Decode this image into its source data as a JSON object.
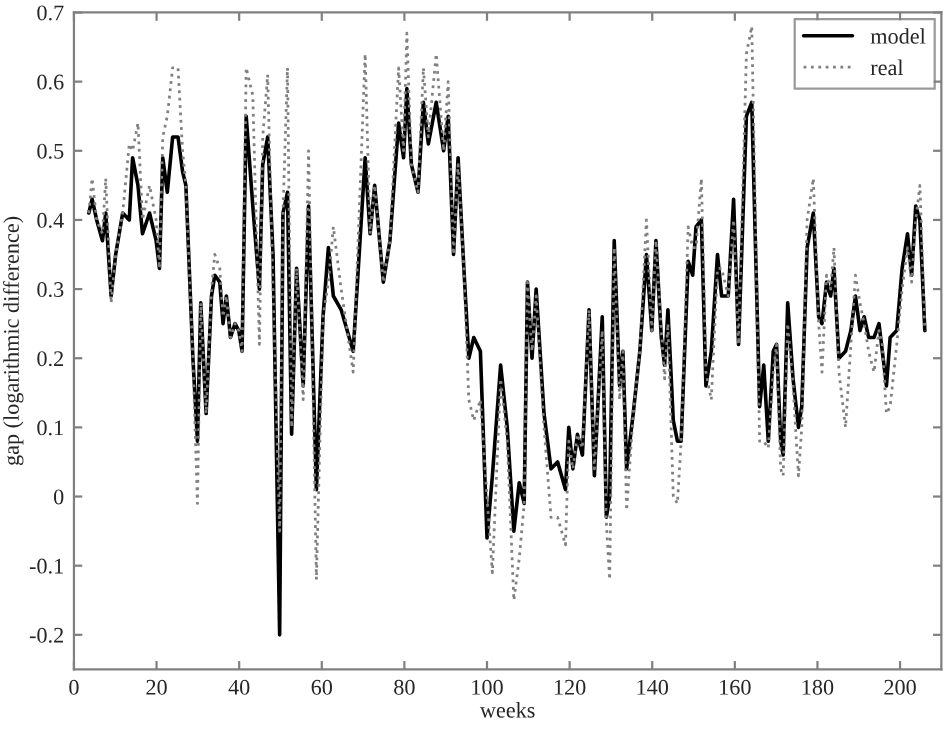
{
  "chart_data": {
    "type": "line",
    "xlabel": "weeks",
    "ylabel": "gap (logarithmic difference)",
    "x": [
      3.6,
      4.4,
      5.5,
      6.9,
      7.7,
      9.0,
      10.1,
      11.8,
      13.4,
      14.2,
      15.5,
      16.6,
      18.3,
      19.9,
      20.7,
      21.5,
      22.6,
      23.9,
      25.2,
      26.3,
      27.1,
      28.8,
      29.9,
      30.7,
      32.0,
      33.3,
      34.1,
      35.3,
      36.1,
      36.9,
      37.9,
      39.0,
      39.9,
      40.7,
      41.7,
      43.3,
      44.9,
      45.7,
      46.9,
      48.2,
      49.8,
      50.6,
      51.7,
      52.7,
      53.9,
      55.5,
      56.8,
      58.7,
      60.3,
      61.6,
      62.8,
      64.7,
      67.6,
      70.5,
      71.7,
      72.8,
      74.9,
      76.5,
      78.6,
      79.8,
      80.6,
      81.7,
      83.3,
      84.6,
      85.8,
      87.7,
      89.5,
      90.6,
      91.9,
      93.0,
      94.4,
      95.6,
      96.8,
      98.4,
      100.0,
      101.3,
      103.3,
      104.9,
      106.5,
      107.8,
      109.0,
      109.8,
      110.9,
      111.9,
      113.8,
      115.5,
      117.1,
      119.0,
      119.8,
      120.8,
      121.9,
      123.1,
      124.7,
      126.0,
      127.9,
      128.9,
      129.7,
      130.8,
      132.1,
      132.9,
      133.8,
      135.4,
      137.0,
      138.6,
      139.9,
      140.9,
      142.2,
      143.0,
      143.8,
      145.1,
      146.1,
      147.0,
      148.7,
      149.8,
      150.6,
      151.9,
      153.0,
      154.3,
      155.8,
      156.8,
      158.4,
      159.7,
      160.9,
      162.8,
      164.1,
      166.0,
      167.0,
      168.1,
      169.3,
      170.1,
      171.1,
      171.7,
      172.8,
      174.1,
      175.4,
      176.2,
      177.5,
      179.0,
      180.3,
      181.1,
      182.2,
      183.2,
      184.0,
      185.2,
      186.8,
      188.1,
      189.2,
      190.3,
      191.3,
      192.4,
      193.7,
      194.9,
      195.7,
      196.7,
      197.6,
      199.2,
      200.5,
      201.8,
      202.8,
      203.8,
      204.8,
      206.0
    ],
    "series": [
      {
        "name": "model",
        "color": "#000000",
        "line_style": "solid",
        "values": [
          0.41,
          0.43,
          0.4,
          0.37,
          0.41,
          0.29,
          0.35,
          0.41,
          0.4,
          0.49,
          0.45,
          0.38,
          0.41,
          0.37,
          0.33,
          0.49,
          0.44,
          0.52,
          0.52,
          0.47,
          0.45,
          0.2,
          0.08,
          0.28,
          0.12,
          0.29,
          0.32,
          0.31,
          0.25,
          0.29,
          0.23,
          0.25,
          0.24,
          0.21,
          0.55,
          0.42,
          0.3,
          0.48,
          0.52,
          0.35,
          -0.2,
          0.41,
          0.44,
          0.09,
          0.33,
          0.16,
          0.42,
          0.01,
          0.26,
          0.36,
          0.29,
          0.27,
          0.21,
          0.49,
          0.38,
          0.45,
          0.31,
          0.37,
          0.54,
          0.49,
          0.59,
          0.48,
          0.44,
          0.57,
          0.51,
          0.57,
          0.5,
          0.55,
          0.35,
          0.49,
          0.33,
          0.2,
          0.23,
          0.21,
          -0.06,
          0.03,
          0.19,
          0.1,
          -0.05,
          0.02,
          -0.01,
          0.31,
          0.2,
          0.3,
          0.12,
          0.04,
          0.05,
          0.01,
          0.1,
          0.04,
          0.09,
          0.06,
          0.27,
          0.03,
          0.26,
          -0.03,
          0.0,
          0.37,
          0.16,
          0.21,
          0.04,
          0.12,
          0.21,
          0.35,
          0.24,
          0.37,
          0.23,
          0.19,
          0.27,
          0.11,
          0.08,
          0.08,
          0.34,
          0.32,
          0.39,
          0.4,
          0.16,
          0.21,
          0.35,
          0.29,
          0.29,
          0.43,
          0.22,
          0.55,
          0.57,
          0.13,
          0.19,
          0.08,
          0.21,
          0.22,
          0.08,
          0.06,
          0.28,
          0.17,
          0.1,
          0.13,
          0.36,
          0.41,
          0.26,
          0.25,
          0.31,
          0.29,
          0.33,
          0.2,
          0.21,
          0.24,
          0.29,
          0.24,
          0.26,
          0.23,
          0.23,
          0.25,
          0.21,
          0.16,
          0.23,
          0.24,
          0.33,
          0.38,
          0.32,
          0.42,
          0.4,
          0.24
        ]
      },
      {
        "name": "real",
        "color": "#808080",
        "line_style": "dotted",
        "values": [
          0.41,
          0.46,
          0.4,
          0.38,
          0.46,
          0.28,
          0.35,
          0.41,
          0.51,
          0.5,
          0.54,
          0.4,
          0.45,
          0.4,
          0.33,
          0.52,
          0.55,
          0.62,
          0.62,
          0.5,
          0.45,
          0.2,
          -0.01,
          0.28,
          0.12,
          0.3,
          0.35,
          0.33,
          0.26,
          0.29,
          0.23,
          0.25,
          0.24,
          0.21,
          0.62,
          0.58,
          0.22,
          0.52,
          0.61,
          0.3,
          -0.05,
          0.41,
          0.62,
          0.1,
          0.33,
          0.14,
          0.5,
          -0.12,
          0.26,
          0.31,
          0.39,
          0.3,
          0.18,
          0.64,
          0.38,
          0.45,
          0.31,
          0.37,
          0.62,
          0.5,
          0.67,
          0.48,
          0.44,
          0.62,
          0.52,
          0.64,
          0.5,
          0.6,
          0.35,
          0.48,
          0.33,
          0.14,
          0.11,
          0.14,
          0.0,
          -0.11,
          0.17,
          0.08,
          -0.15,
          -0.09,
          -0.01,
          0.31,
          0.21,
          0.29,
          0.1,
          -0.03,
          -0.03,
          -0.07,
          0.08,
          0.04,
          0.09,
          0.07,
          0.27,
          0.04,
          0.24,
          -0.04,
          -0.12,
          0.36,
          0.14,
          0.21,
          -0.02,
          0.12,
          0.21,
          0.4,
          0.24,
          0.37,
          0.24,
          0.17,
          0.25,
          0.0,
          -0.01,
          0.08,
          0.39,
          0.36,
          0.36,
          0.46,
          0.18,
          0.14,
          0.33,
          0.33,
          0.29,
          0.4,
          0.22,
          0.64,
          0.68,
          0.08,
          0.08,
          0.07,
          0.18,
          0.22,
          0.04,
          0.03,
          0.25,
          0.16,
          0.03,
          0.1,
          0.4,
          0.46,
          0.25,
          0.18,
          0.32,
          0.3,
          0.36,
          0.18,
          0.1,
          0.22,
          0.32,
          0.28,
          0.25,
          0.21,
          0.18,
          0.24,
          0.22,
          0.12,
          0.13,
          0.22,
          0.3,
          0.36,
          0.31,
          0.4,
          0.45,
          0.24
        ]
      }
    ],
    "xlim": [
      0,
      210
    ],
    "xticks": [
      0,
      20,
      40,
      60,
      80,
      100,
      120,
      140,
      160,
      180,
      200
    ],
    "ylim": [
      -0.25,
      0.7
    ],
    "yticks": [
      -0.2,
      -0.1,
      0,
      0.1,
      0.2,
      0.3,
      0.4,
      0.5,
      0.6,
      0.7
    ],
    "grid": false,
    "legend": "top right"
  }
}
